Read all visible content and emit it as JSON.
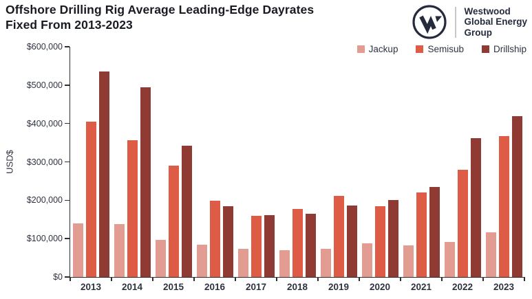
{
  "header": {
    "title_line1": "Offshore Drilling Rig Average Leading-Edge Dayrates",
    "title_line2": "Fixed From 2013-2023",
    "logo": {
      "line1": "Westwood",
      "line2": "Global Energy",
      "line3": "Group"
    }
  },
  "colors": {
    "jackup": "#E29C91",
    "semisub": "#DE5B46",
    "drillship": "#8F3B33",
    "logo_navy": "#252B3D",
    "axis": "#2E2E2E",
    "text_dark": "#2E3340"
  },
  "chart_data": {
    "type": "bar",
    "title": "Offshore Drilling Rig Average Leading-Edge Dayrates Fixed From 2013-2023",
    "xlabel": "",
    "ylabel": "USD$",
    "ylim": [
      0,
      600000
    ],
    "ytick_step": 100000,
    "ytick_labels": [
      "$0",
      "$100,000",
      "$200,000",
      "$300,000",
      "$400,000",
      "$500,000",
      "$600,000"
    ],
    "grid": false,
    "legend_position": "top-right",
    "categories": [
      "2013",
      "2014",
      "2015",
      "2016",
      "2017",
      "2018",
      "2019",
      "2020",
      "2021",
      "2022",
      "2023"
    ],
    "series": [
      {
        "name": "Jackup",
        "color": "#E29C91",
        "values": [
          140000,
          138000,
          96000,
          85000,
          73000,
          69000,
          74000,
          88000,
          83000,
          92000,
          117000
        ]
      },
      {
        "name": "Semisub",
        "color": "#DE5B46",
        "values": [
          404000,
          356000,
          290000,
          198000,
          160000,
          177000,
          212000,
          185000,
          221000,
          280000,
          368000
        ]
      },
      {
        "name": "Drillship",
        "color": "#8F3B33",
        "values": [
          536000,
          494000,
          342000,
          185000,
          162000,
          165000,
          186000,
          201000,
          234000,
          362000,
          420000
        ]
      }
    ]
  }
}
